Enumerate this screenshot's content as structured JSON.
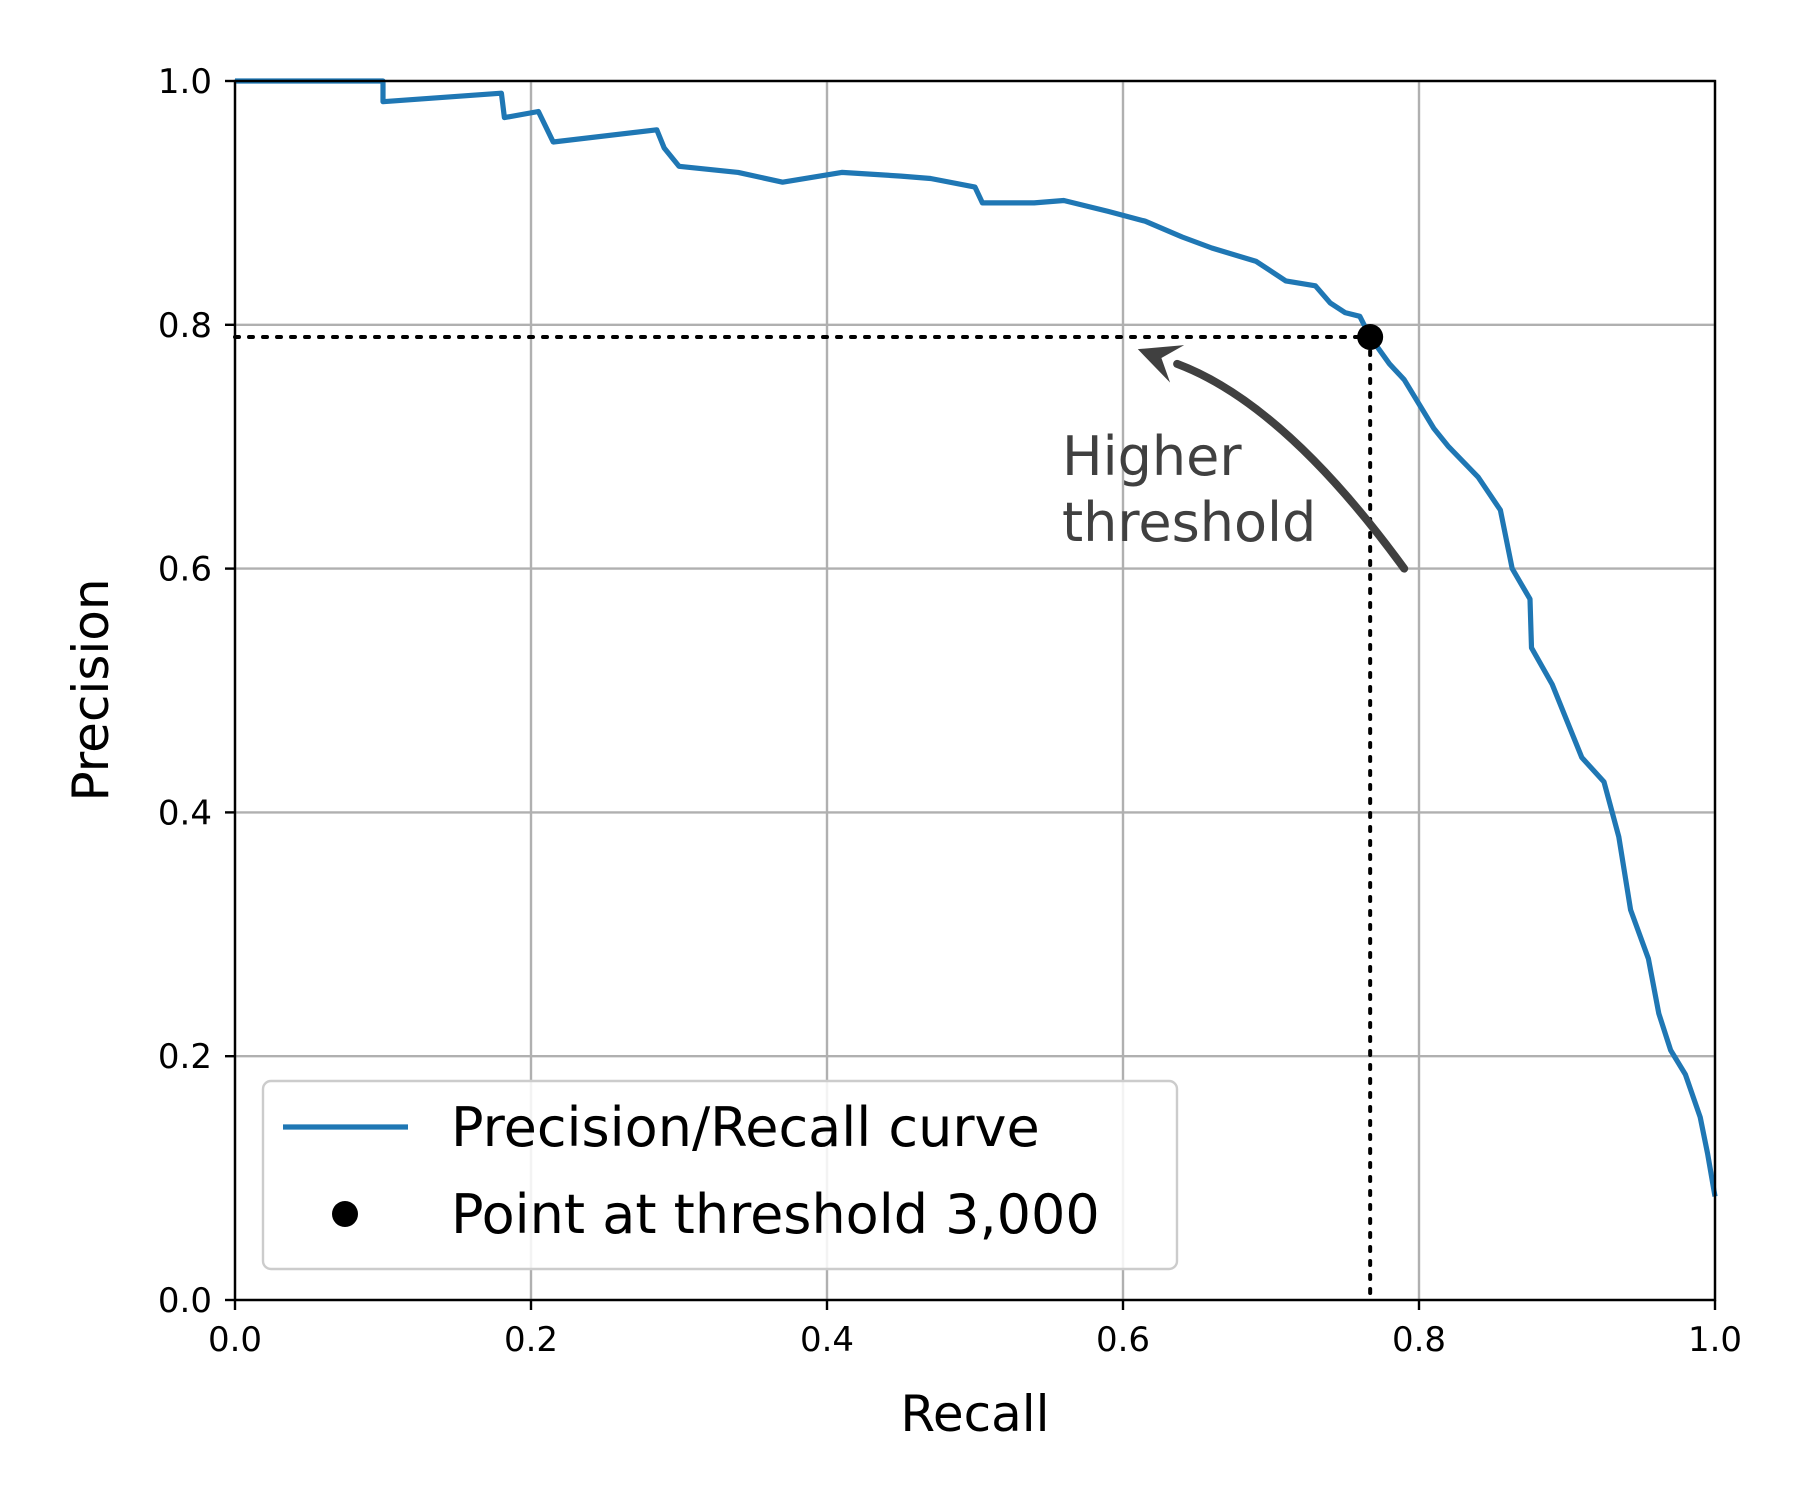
{
  "chart_data": {
    "type": "line",
    "xlabel": "Recall",
    "ylabel": "Precision",
    "xlim": [
      0,
      1
    ],
    "ylim": [
      0,
      1
    ],
    "grid": true,
    "x_ticks": [
      0.0,
      0.2,
      0.4,
      0.6,
      0.8,
      1.0
    ],
    "y_ticks": [
      0.0,
      0.2,
      0.4,
      0.6,
      0.8,
      1.0
    ],
    "x_tick_labels": [
      "0.0",
      "0.2",
      "0.4",
      "0.6",
      "0.8",
      "1.0"
    ],
    "y_tick_labels": [
      "0.0",
      "0.2",
      "0.4",
      "0.6",
      "0.8",
      "1.0"
    ],
    "legend_position": "lower-left",
    "series": [
      {
        "name": "Precision/Recall curve",
        "color": "#1f77b4",
        "points": [
          [
            0.0,
            1.0
          ],
          [
            0.1,
            1.0
          ],
          [
            0.1,
            0.983
          ],
          [
            0.18,
            0.99
          ],
          [
            0.182,
            0.97
          ],
          [
            0.205,
            0.975
          ],
          [
            0.215,
            0.95
          ],
          [
            0.285,
            0.96
          ],
          [
            0.29,
            0.945
          ],
          [
            0.3,
            0.93
          ],
          [
            0.34,
            0.925
          ],
          [
            0.37,
            0.917
          ],
          [
            0.41,
            0.925
          ],
          [
            0.45,
            0.922
          ],
          [
            0.47,
            0.92
          ],
          [
            0.5,
            0.913
          ],
          [
            0.505,
            0.9
          ],
          [
            0.54,
            0.9
          ],
          [
            0.56,
            0.902
          ],
          [
            0.59,
            0.893
          ],
          [
            0.615,
            0.885
          ],
          [
            0.64,
            0.872
          ],
          [
            0.66,
            0.863
          ],
          [
            0.69,
            0.852
          ],
          [
            0.71,
            0.836
          ],
          [
            0.73,
            0.832
          ],
          [
            0.74,
            0.818
          ],
          [
            0.75,
            0.81
          ],
          [
            0.76,
            0.807
          ],
          [
            0.767,
            0.79
          ],
          [
            0.78,
            0.768
          ],
          [
            0.79,
            0.755
          ],
          [
            0.8,
            0.735
          ],
          [
            0.81,
            0.715
          ],
          [
            0.82,
            0.7
          ],
          [
            0.84,
            0.675
          ],
          [
            0.855,
            0.648
          ],
          [
            0.863,
            0.6
          ],
          [
            0.875,
            0.575
          ],
          [
            0.876,
            0.535
          ],
          [
            0.89,
            0.505
          ],
          [
            0.9,
            0.475
          ],
          [
            0.91,
            0.445
          ],
          [
            0.925,
            0.425
          ],
          [
            0.935,
            0.38
          ],
          [
            0.943,
            0.32
          ],
          [
            0.955,
            0.28
          ],
          [
            0.962,
            0.235
          ],
          [
            0.97,
            0.205
          ],
          [
            0.98,
            0.185
          ],
          [
            0.99,
            0.15
          ],
          [
            0.995,
            0.12
          ],
          [
            1.0,
            0.085
          ]
        ]
      },
      {
        "name": "Point at threshold 3,000",
        "color": "#000000",
        "points": [
          [
            0.767,
            0.79
          ]
        ]
      }
    ],
    "reference_lines": {
      "x": 0.767,
      "y": 0.79
    },
    "annotation": {
      "text_lines": [
        "Higher",
        "threshold"
      ],
      "from": [
        0.79,
        0.6
      ],
      "to": [
        0.61,
        0.78
      ],
      "color": "#404040"
    }
  }
}
